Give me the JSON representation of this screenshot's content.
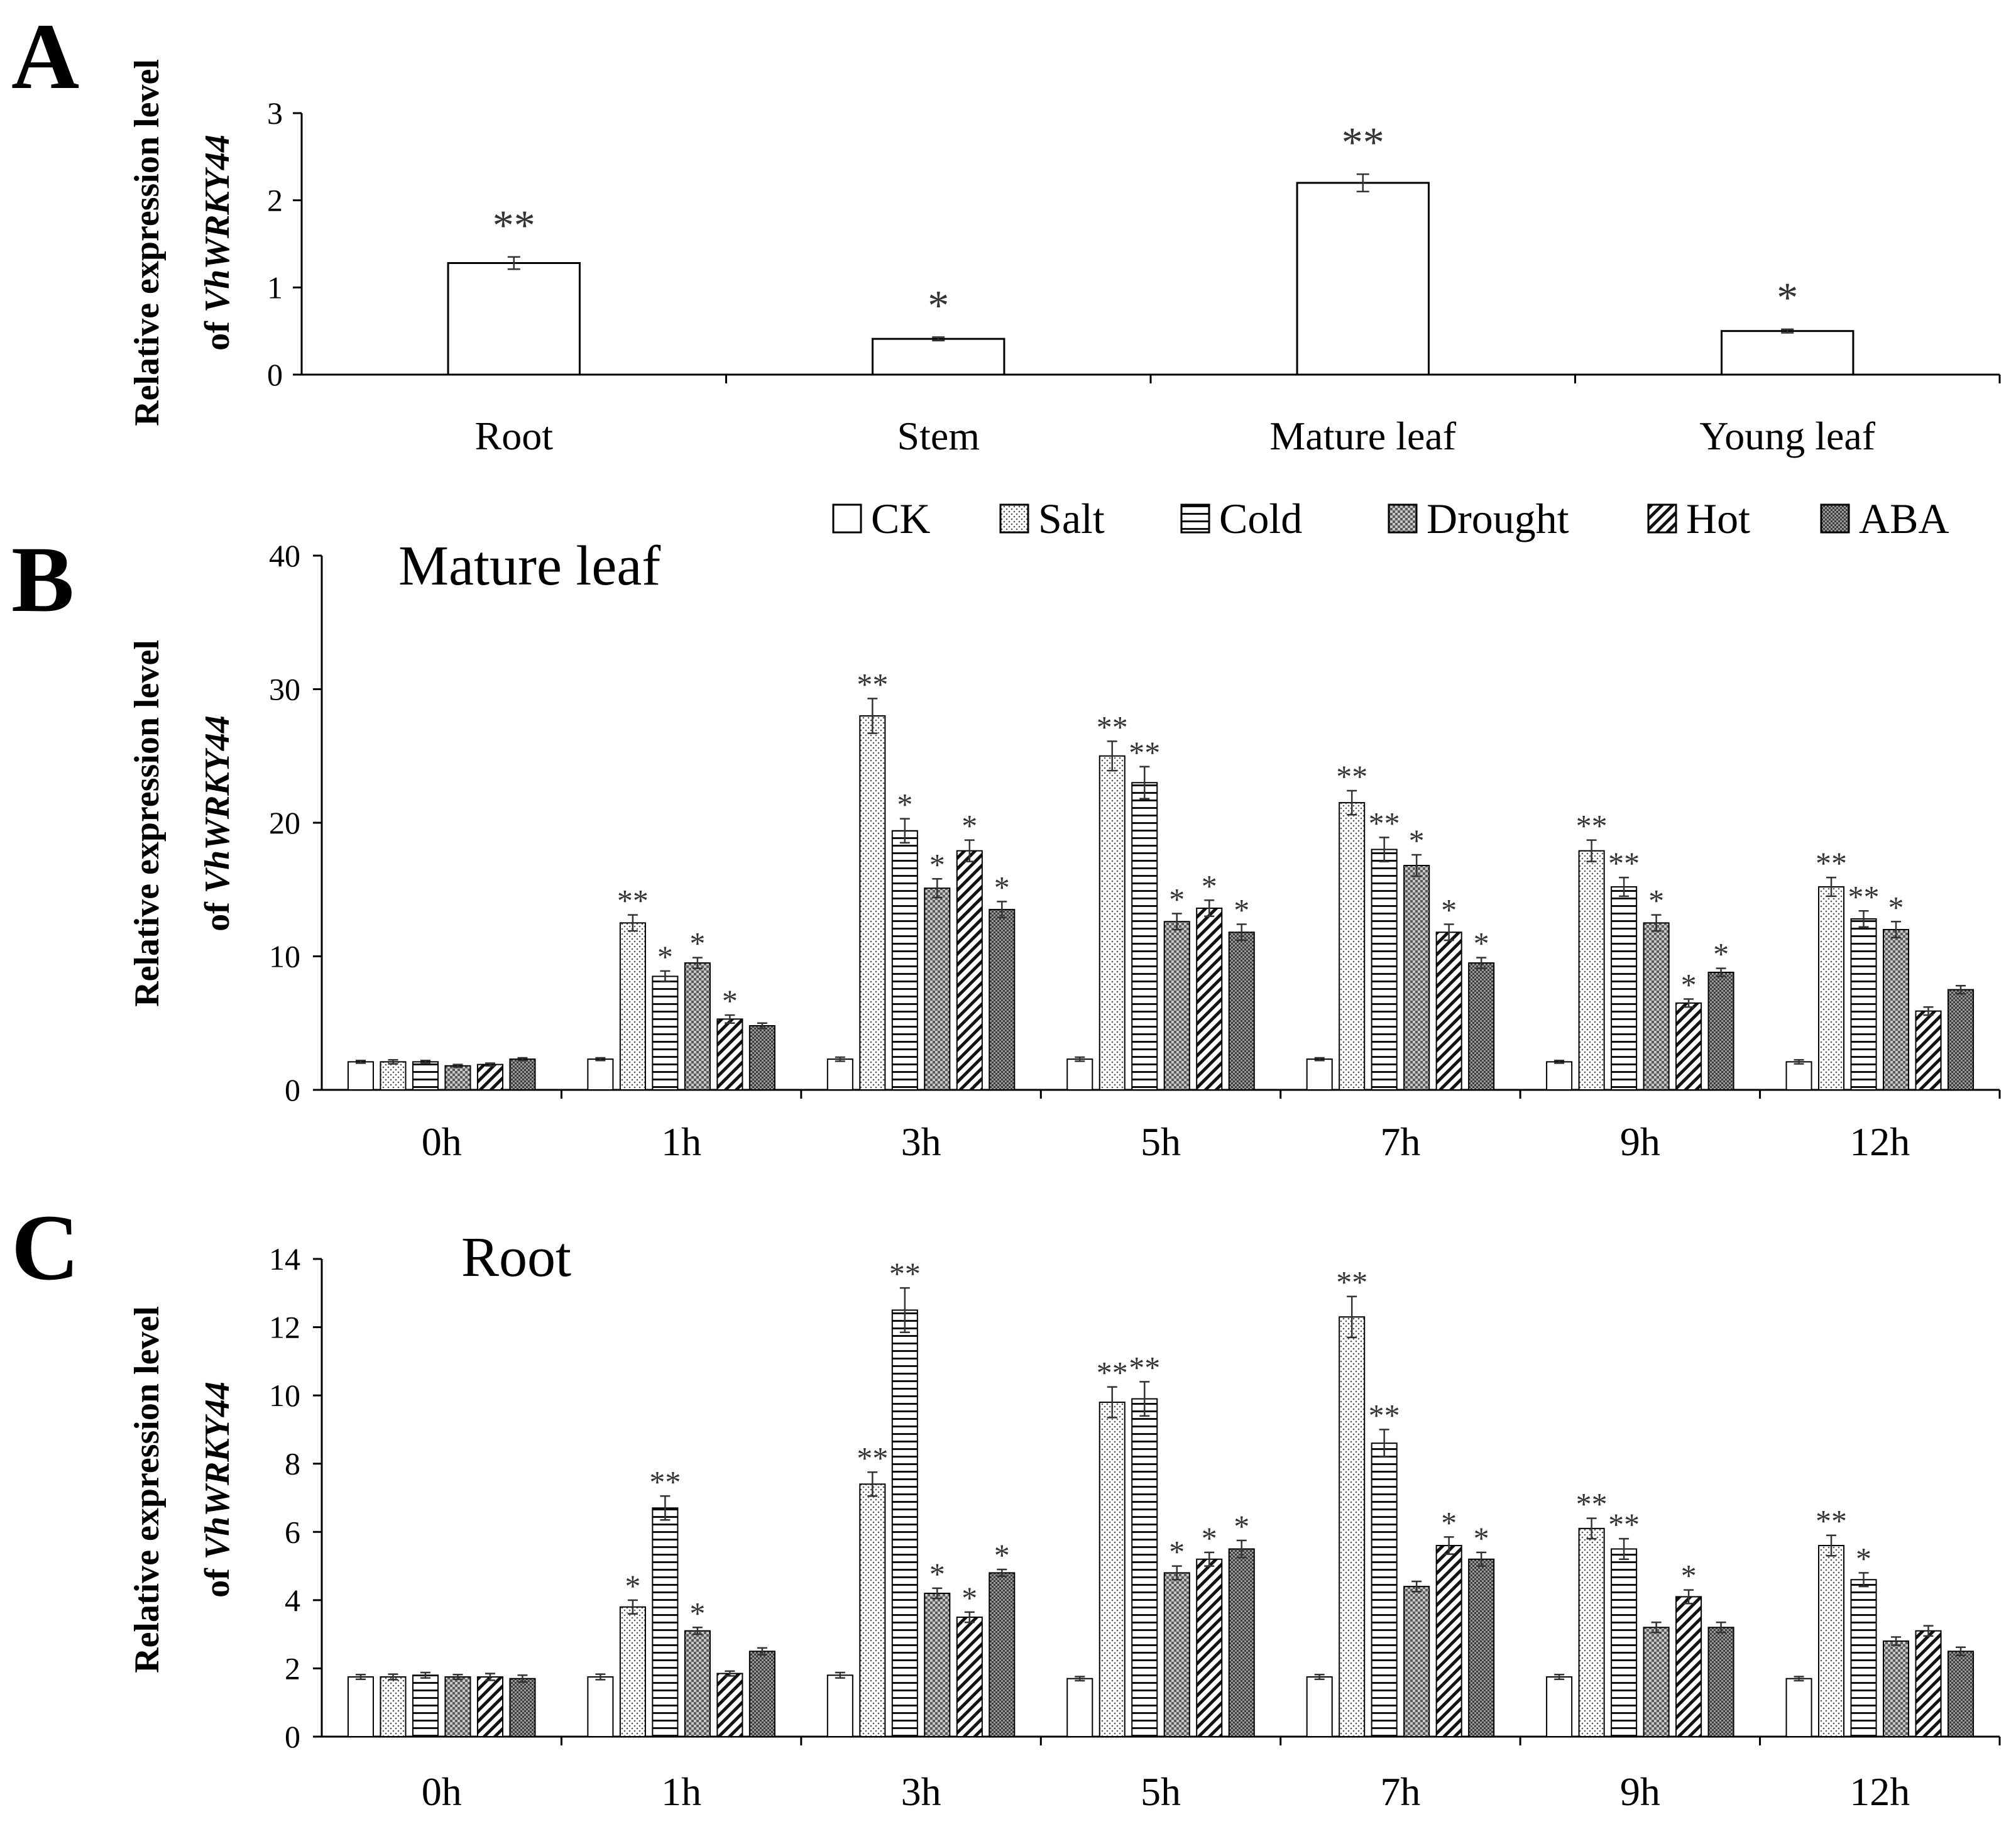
{
  "colors": {
    "axis": "#000000",
    "bar_edge": "#000000",
    "error": "#333333"
  },
  "legend": [
    {
      "name": "CK",
      "pattern": "none"
    },
    {
      "name": "Salt",
      "pattern": "dots"
    },
    {
      "name": "Cold",
      "pattern": "hlines"
    },
    {
      "name": "Drought",
      "pattern": "checker"
    },
    {
      "name": "Hot",
      "pattern": "diag"
    },
    {
      "name": "ABA",
      "pattern": "dense"
    }
  ],
  "chart_data": [
    {
      "panel": "A",
      "type": "bar",
      "ylabel_line1": "Relative expression level",
      "ylabel_line2_prefix": "of ",
      "ylabel_line2_gene": "VhWRKY44",
      "ylim": [
        0,
        3
      ],
      "yticks": [
        0,
        1,
        2,
        3
      ],
      "categories": [
        "Root",
        "Stem",
        "Mature leaf",
        "Young leaf"
      ],
      "values": [
        1.28,
        0.41,
        2.2,
        0.5
      ],
      "errors": [
        0.07,
        0.02,
        0.1,
        0.02
      ],
      "significance": [
        "**",
        "*",
        "**",
        "*"
      ]
    },
    {
      "panel": "B",
      "type": "bar",
      "subtitle": "Mature leaf",
      "ylabel_line1": "Relative expression level",
      "ylabel_line2_prefix": "of ",
      "ylabel_line2_gene": "VhWRKY44",
      "ylim": [
        0,
        40
      ],
      "yticks": [
        0,
        10,
        20,
        30,
        40
      ],
      "categories": [
        "0h",
        "1h",
        "3h",
        "5h",
        "7h",
        "9h",
        "12h"
      ],
      "series": [
        {
          "name": "CK",
          "values": [
            2.1,
            2.3,
            2.3,
            2.3,
            2.3,
            2.1,
            2.1
          ],
          "errors": [
            0.1,
            0.1,
            0.15,
            0.15,
            0.1,
            0.1,
            0.15
          ],
          "significance": [
            "",
            "",
            "",
            "",
            "",
            "",
            ""
          ]
        },
        {
          "name": "Salt",
          "values": [
            2.1,
            12.5,
            28.0,
            25.0,
            21.5,
            17.9,
            15.2
          ],
          "errors": [
            0.15,
            0.6,
            1.3,
            1.1,
            0.9,
            0.8,
            0.7
          ],
          "significance": [
            "",
            "**",
            "**",
            "**",
            "**",
            "**",
            "**"
          ]
        },
        {
          "name": "Cold",
          "values": [
            2.1,
            8.5,
            19.4,
            23.0,
            18.0,
            15.2,
            12.8
          ],
          "errors": [
            0.1,
            0.4,
            0.9,
            1.2,
            0.9,
            0.7,
            0.6
          ],
          "significance": [
            "",
            "*",
            "*",
            "**",
            "**",
            "**",
            "**"
          ]
        },
        {
          "name": "Drought",
          "values": [
            1.8,
            9.5,
            15.1,
            12.6,
            16.8,
            12.5,
            12.0
          ],
          "errors": [
            0.1,
            0.4,
            0.7,
            0.6,
            0.8,
            0.6,
            0.6
          ],
          "significance": [
            "",
            "*",
            "*",
            "*",
            "*",
            "*",
            "*"
          ]
        },
        {
          "name": "Hot",
          "values": [
            1.9,
            5.3,
            17.9,
            13.6,
            11.8,
            6.5,
            5.9
          ],
          "errors": [
            0.1,
            0.3,
            0.8,
            0.6,
            0.6,
            0.3,
            0.3
          ],
          "significance": [
            "",
            "*",
            "*",
            "*",
            "*",
            "*",
            ""
          ]
        },
        {
          "name": "ABA",
          "values": [
            2.3,
            4.8,
            13.5,
            11.8,
            9.5,
            8.8,
            7.5
          ],
          "errors": [
            0.1,
            0.2,
            0.6,
            0.6,
            0.4,
            0.3,
            0.3
          ],
          "significance": [
            "",
            "",
            "*",
            "*",
            "*",
            "*",
            ""
          ]
        }
      ]
    },
    {
      "panel": "C",
      "type": "bar",
      "subtitle": "Root",
      "ylabel_line1": "Relative expression level",
      "ylabel_line2_prefix": "of ",
      "ylabel_line2_gene": "VhWRKY44",
      "ylim": [
        0,
        14
      ],
      "yticks": [
        0,
        2,
        4,
        6,
        8,
        10,
        12,
        14
      ],
      "categories": [
        "0h",
        "1h",
        "3h",
        "5h",
        "7h",
        "9h",
        "12h"
      ],
      "series": [
        {
          "name": "CK",
          "values": [
            1.75,
            1.75,
            1.8,
            1.7,
            1.75,
            1.75,
            1.7
          ],
          "errors": [
            0.07,
            0.08,
            0.08,
            0.06,
            0.07,
            0.07,
            0.06
          ],
          "significance": [
            "",
            "",
            "",
            "",
            "",
            "",
            ""
          ]
        },
        {
          "name": "Salt",
          "values": [
            1.75,
            3.8,
            7.4,
            9.8,
            12.3,
            6.1,
            5.6
          ],
          "errors": [
            0.08,
            0.2,
            0.35,
            0.45,
            0.6,
            0.3,
            0.3
          ],
          "significance": [
            "",
            "*",
            "**",
            "**",
            "**",
            "**",
            "**"
          ]
        },
        {
          "name": "Cold",
          "values": [
            1.8,
            6.7,
            12.5,
            9.9,
            8.6,
            5.5,
            4.6
          ],
          "errors": [
            0.08,
            0.35,
            0.65,
            0.5,
            0.4,
            0.3,
            0.2
          ],
          "significance": [
            "",
            "**",
            "**",
            "**",
            "**",
            "**",
            "*"
          ]
        },
        {
          "name": "Drought",
          "values": [
            1.75,
            3.1,
            4.2,
            4.8,
            4.4,
            3.2,
            2.8
          ],
          "errors": [
            0.07,
            0.1,
            0.15,
            0.2,
            0.15,
            0.15,
            0.12
          ],
          "significance": [
            "",
            "*",
            "*",
            "*",
            "",
            "",
            ""
          ]
        },
        {
          "name": "Hot",
          "values": [
            1.75,
            1.85,
            3.5,
            5.2,
            5.6,
            4.1,
            3.1
          ],
          "errors": [
            0.1,
            0.07,
            0.15,
            0.2,
            0.25,
            0.2,
            0.15
          ],
          "significance": [
            "",
            "",
            "*",
            "*",
            "*",
            "*",
            ""
          ]
        },
        {
          "name": "ABA",
          "values": [
            1.7,
            2.5,
            4.8,
            5.5,
            5.2,
            3.2,
            2.5
          ],
          "errors": [
            0.1,
            0.1,
            0.1,
            0.25,
            0.2,
            0.15,
            0.12
          ],
          "significance": [
            "",
            "",
            "*",
            "*",
            "*",
            "",
            ""
          ]
        }
      ]
    }
  ],
  "panel_labels": [
    "A",
    "B",
    "C"
  ]
}
